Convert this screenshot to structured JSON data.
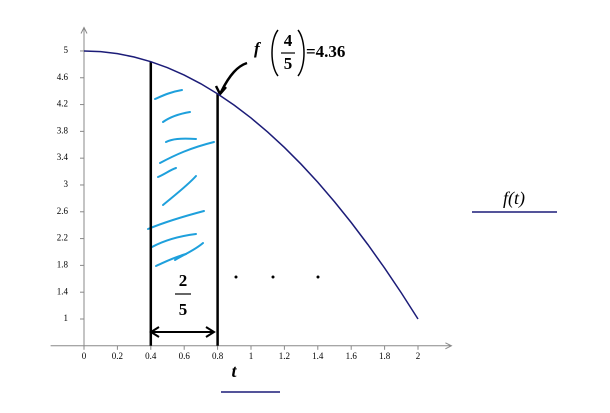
{
  "chart_data": {
    "type": "line",
    "x": [
      0,
      0.1,
      0.2,
      0.3,
      0.4,
      0.5,
      0.6,
      0.7,
      0.8,
      0.9,
      1,
      1.1,
      1.2,
      1.3,
      1.4,
      1.5,
      1.6,
      1.7,
      1.8,
      1.9,
      2
    ],
    "series": [
      {
        "name": "f(t)",
        "color": "#1c1c78",
        "values": [
          5,
          4.99,
          4.96,
          4.91,
          4.84,
          4.75,
          4.64,
          4.51,
          4.36,
          4.19,
          4,
          3.79,
          3.56,
          3.31,
          3.04,
          2.75,
          2.44,
          2.11,
          1.76,
          1.39,
          1
        ]
      }
    ],
    "x_label": "t",
    "xlim": [
      -0.2,
      2.2
    ],
    "xticks": [
      0,
      0.2,
      0.4,
      0.6,
      0.8,
      1,
      1.2,
      1.4,
      1.6,
      1.8,
      2
    ],
    "ylim": [
      0.6,
      5.35
    ],
    "yticks": [
      1,
      1.4,
      1.8,
      2.2,
      2.6,
      3,
      3.4,
      3.8,
      4.2,
      4.6,
      5
    ],
    "interval": [
      0.4,
      0.8
    ],
    "annotations": {
      "function": "f",
      "numerator": "4",
      "denominator": "5",
      "result": "=4.36",
      "width_numerator": "2",
      "width_denominator": "5"
    }
  }
}
